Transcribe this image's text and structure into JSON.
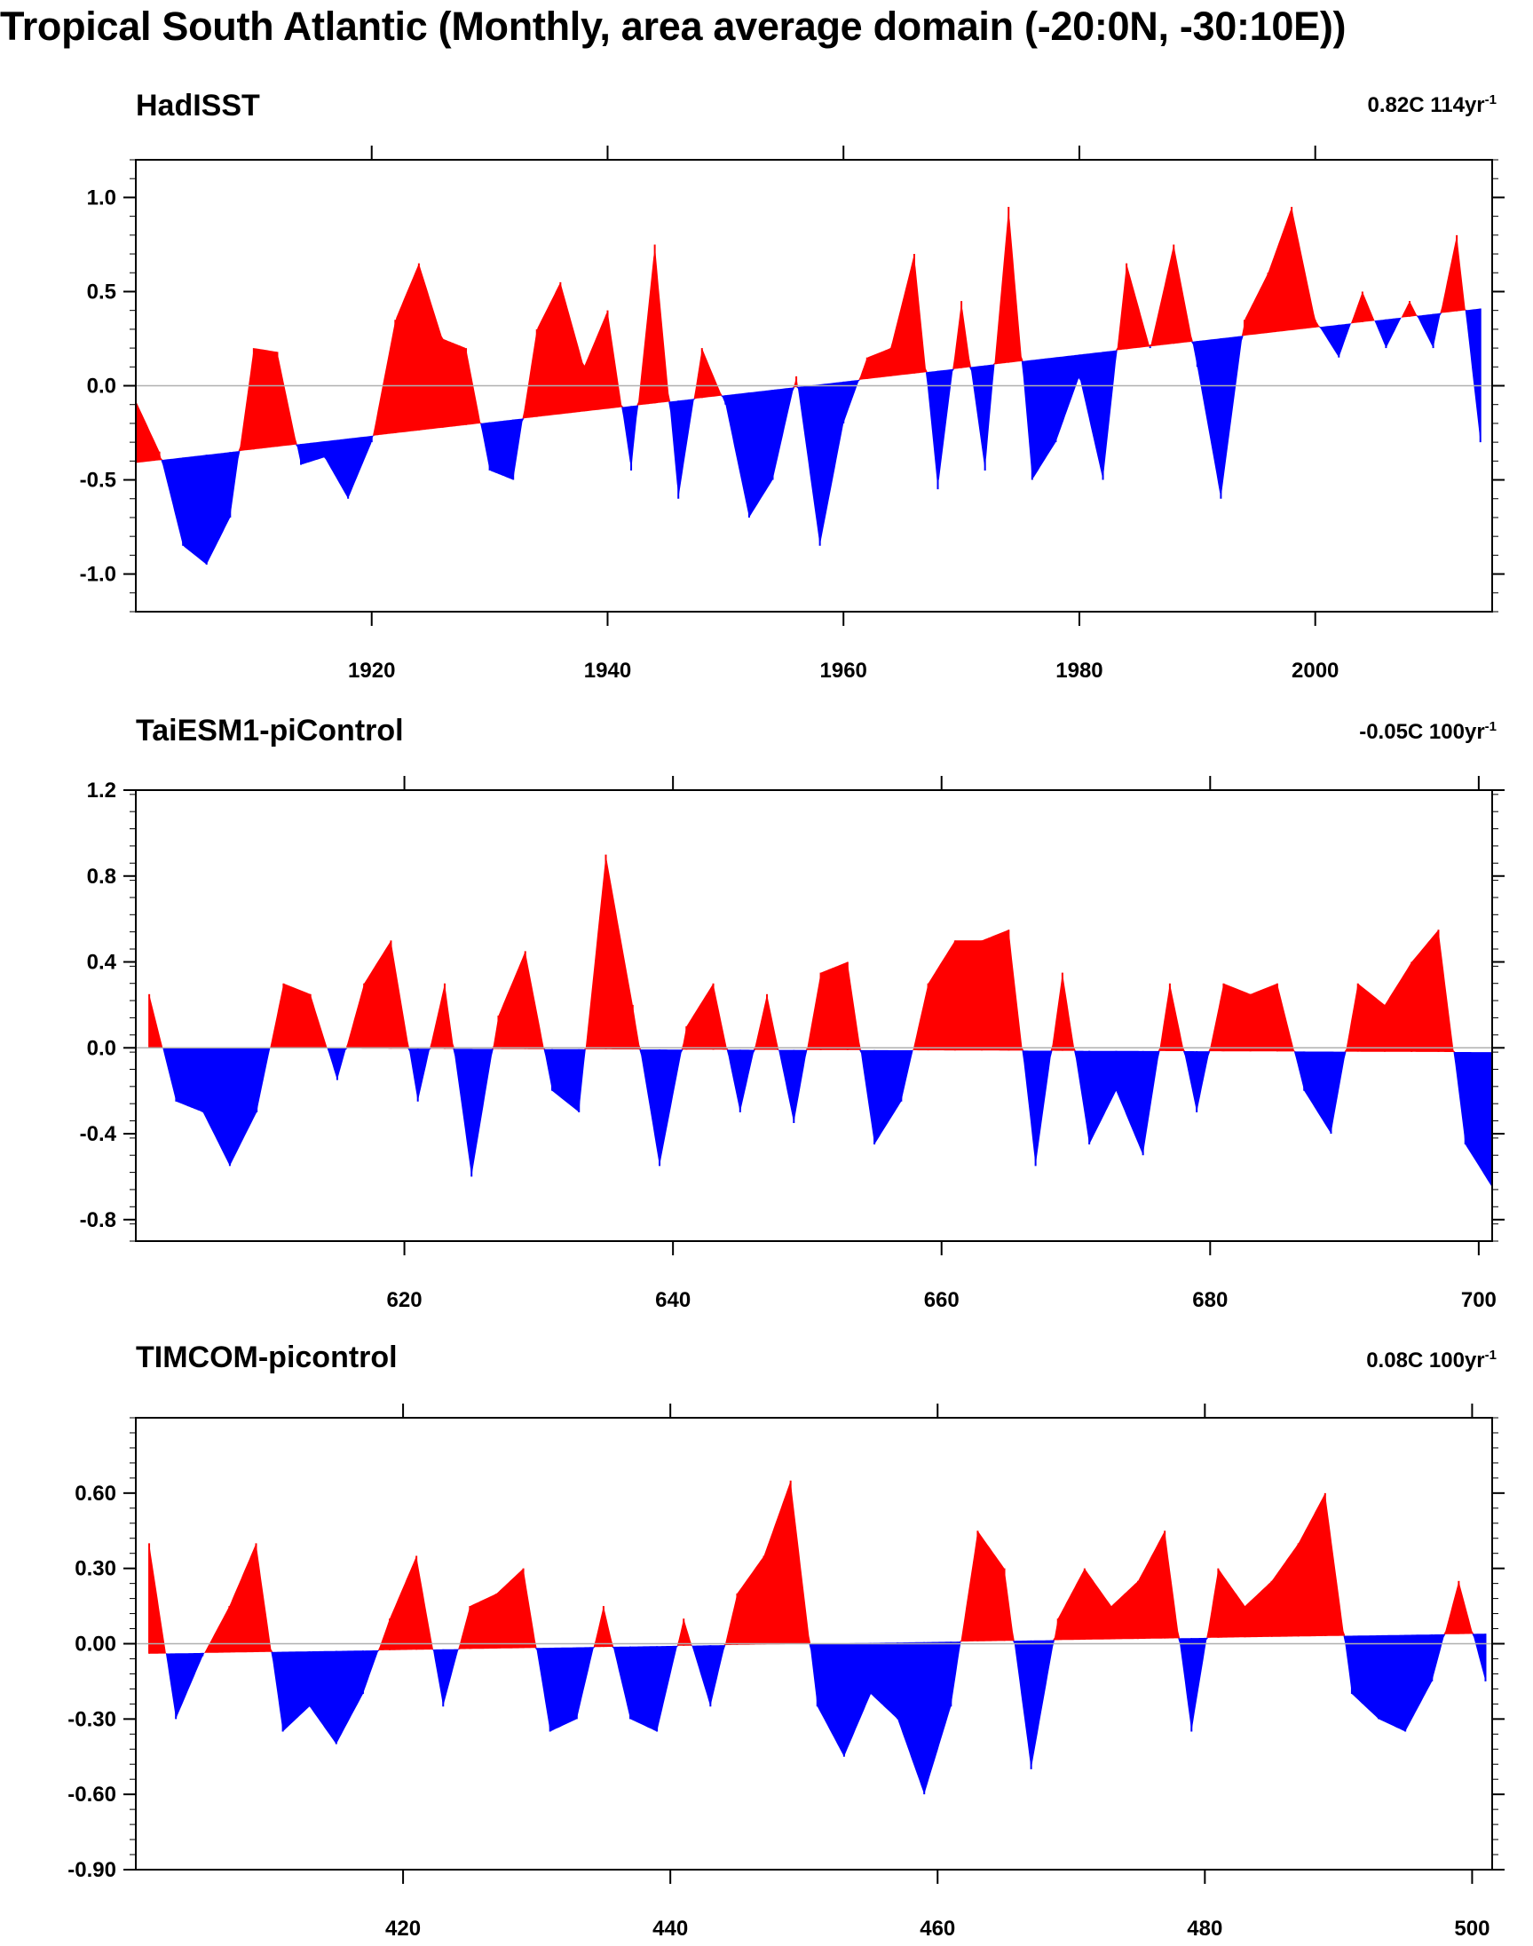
{
  "title": "Tropical South Atlantic (Monthly, area average domain (-20:0N, -30:10E))",
  "colors": {
    "positive": "#ff0000",
    "negative": "#0000ff",
    "frame": "#000000",
    "zero_line": "#b0b0b0"
  },
  "chart_data": [
    {
      "type": "area",
      "title": "HadISST",
      "trend_value": "0.82C 114yr",
      "trend_unit_superscript": "-1",
      "x": [
        1900,
        1902,
        1904,
        1906,
        1908,
        1910,
        1912,
        1914,
        1916,
        1918,
        1920,
        1922,
        1924,
        1926,
        1928,
        1930,
        1932,
        1934,
        1936,
        1938,
        1940,
        1942,
        1944,
        1946,
        1948,
        1950,
        1952,
        1954,
        1956,
        1958,
        1960,
        1962,
        1964,
        1966,
        1968,
        1970,
        1972,
        1974,
        1976,
        1978,
        1980,
        1982,
        1984,
        1986,
        1988,
        1990,
        1992,
        1994,
        1996,
        1998,
        2000,
        2002,
        2004,
        2006,
        2008,
        2010,
        2012,
        2014
      ],
      "values": [
        -0.08,
        -0.35,
        -0.85,
        -0.95,
        -0.7,
        0.2,
        0.18,
        -0.42,
        -0.38,
        -0.6,
        -0.3,
        0.35,
        0.65,
        0.25,
        0.2,
        -0.45,
        -0.5,
        0.3,
        0.55,
        0.1,
        0.4,
        -0.45,
        0.75,
        -0.6,
        0.2,
        -0.1,
        -0.7,
        -0.5,
        0.05,
        -0.85,
        -0.2,
        0.15,
        0.2,
        0.7,
        -0.55,
        0.45,
        -0.45,
        0.95,
        -0.5,
        -0.3,
        0.05,
        -0.5,
        0.65,
        0.2,
        0.75,
        0.1,
        -0.6,
        0.35,
        0.6,
        0.95,
        0.35,
        0.15,
        0.5,
        0.2,
        0.45,
        0.2,
        0.8,
        -0.3
      ],
      "trend_line": {
        "x": [
          1900,
          2014
        ],
        "y": [
          -0.41,
          0.41
        ]
      },
      "xlim": [
        1900,
        2015
      ],
      "ylim": [
        -1.2,
        1.2
      ],
      "xticks": [
        "1920",
        "1940",
        "1960",
        "1980",
        "2000"
      ],
      "yticks": [
        "1.0",
        "0.5",
        "0.0",
        "-0.5",
        "-1.0"
      ]
    },
    {
      "type": "area",
      "title": "TaiESM1-piControl",
      "trend_value": "-0.05C 100yr",
      "trend_unit_superscript": "-1",
      "x": [
        601,
        603,
        605,
        607,
        609,
        611,
        613,
        615,
        617,
        619,
        621,
        623,
        625,
        627,
        629,
        631,
        633,
        635,
        637,
        639,
        641,
        643,
        645,
        647,
        649,
        651,
        653,
        655,
        657,
        659,
        661,
        663,
        665,
        667,
        669,
        671,
        673,
        675,
        677,
        679,
        681,
        683,
        685,
        687,
        689,
        691,
        693,
        695,
        697,
        699,
        701
      ],
      "values": [
        0.25,
        -0.25,
        -0.3,
        -0.55,
        -0.3,
        0.3,
        0.25,
        -0.15,
        0.3,
        0.5,
        -0.25,
        0.3,
        -0.6,
        0.15,
        0.45,
        -0.2,
        -0.3,
        0.9,
        0.2,
        -0.55,
        0.1,
        0.3,
        -0.3,
        0.25,
        -0.35,
        0.35,
        0.4,
        -0.45,
        -0.25,
        0.3,
        0.5,
        0.5,
        0.55,
        -0.55,
        0.35,
        -0.45,
        -0.2,
        -0.5,
        0.3,
        -0.3,
        0.3,
        0.25,
        0.3,
        -0.2,
        -0.4,
        0.3,
        0.2,
        0.4,
        0.55,
        -0.45,
        -0.65
      ],
      "trend_line": {
        "x": [
          601,
          701
        ],
        "y": [
          0.0,
          -0.02
        ]
      },
      "xlim": [
        600,
        701
      ],
      "ylim": [
        -0.9,
        1.2
      ],
      "xticks": [
        "620",
        "640",
        "660",
        "680",
        "700"
      ],
      "yticks": [
        "1.2",
        "0.8",
        "0.4",
        "0.0",
        "-0.4",
        "-0.8"
      ]
    },
    {
      "type": "area",
      "title": "TIMCOM-picontrol",
      "trend_value": "0.08C 100yr",
      "trend_unit_superscript": "-1",
      "x": [
        401,
        403,
        405,
        407,
        409,
        411,
        413,
        415,
        417,
        419,
        421,
        423,
        425,
        427,
        429,
        431,
        433,
        435,
        437,
        439,
        441,
        443,
        445,
        447,
        449,
        451,
        453,
        455,
        457,
        459,
        461,
        463,
        465,
        467,
        469,
        471,
        473,
        475,
        477,
        479,
        481,
        483,
        485,
        487,
        489,
        491,
        493,
        495,
        497,
        499,
        501
      ],
      "values": [
        0.4,
        -0.3,
        -0.05,
        0.15,
        0.4,
        -0.35,
        -0.25,
        -0.4,
        -0.2,
        0.1,
        0.35,
        -0.25,
        0.15,
        0.2,
        0.3,
        -0.35,
        -0.3,
        0.15,
        -0.3,
        -0.35,
        0.1,
        -0.25,
        0.2,
        0.35,
        0.65,
        -0.25,
        -0.45,
        -0.2,
        -0.3,
        -0.6,
        -0.25,
        0.45,
        0.3,
        -0.5,
        0.1,
        0.3,
        0.15,
        0.25,
        0.45,
        -0.35,
        0.3,
        0.15,
        0.25,
        0.4,
        0.6,
        -0.2,
        -0.3,
        -0.35,
        -0.15,
        0.25,
        -0.15
      ],
      "trend_line": {
        "x": [
          401,
          501
        ],
        "y": [
          -0.04,
          0.04
        ]
      },
      "xlim": [
        400,
        501.5
      ],
      "ylim": [
        -0.9,
        0.9
      ],
      "xticks": [
        "420",
        "440",
        "460",
        "480",
        "500"
      ],
      "yticks": [
        "0.60",
        "0.30",
        "0.00",
        "-0.30",
        "-0.60",
        "-0.90"
      ]
    }
  ]
}
